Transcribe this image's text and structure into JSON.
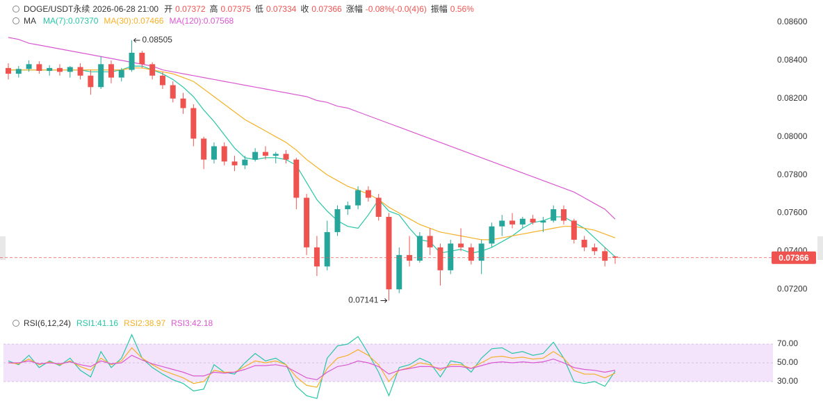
{
  "header": {
    "symbol": "DOGE/USDT永续",
    "time": "2026-06-28 21:00",
    "fields": [
      {
        "label": "开",
        "value": "0.07372"
      },
      {
        "label": "高",
        "value": "0.07375"
      },
      {
        "label": "低",
        "value": "0.07334"
      },
      {
        "label": "收",
        "value": "0.07366"
      },
      {
        "label": "涨幅",
        "value": "-0.08%(-0.0(4)6)"
      },
      {
        "label": "振幅",
        "value": "0.56%"
      }
    ]
  },
  "chart_data": [
    {
      "type": "candlestick",
      "legend_title": "MA",
      "up_color": "#26a69a",
      "down_color": "#ef5350",
      "open": [
        0.0836,
        0.0833,
        0.08355,
        0.0838,
        0.08345,
        0.0836,
        0.0834,
        0.08365,
        0.0832,
        0.0826,
        0.0838,
        0.0831,
        0.0835,
        0.0844,
        0.0838,
        0.0832,
        0.0827,
        0.082,
        0.0815,
        0.0799,
        0.0788,
        0.0795,
        0.0787,
        0.0785,
        0.0788,
        0.0792,
        0.079,
        0.0791,
        0.0788,
        0.0768,
        0.0742,
        0.0732,
        0.075,
        0.0762,
        0.0764,
        0.0772,
        0.0768,
        0.0758,
        0.072,
        0.0738,
        0.0735,
        0.0748,
        0.0742,
        0.073,
        0.0744,
        0.0742,
        0.0735,
        0.0744,
        0.0753,
        0.0756,
        0.0754,
        0.0757,
        0.0755,
        0.0756,
        0.0762,
        0.0756,
        0.0746,
        0.0742,
        0.074,
        0.07372
      ],
      "high": [
        0.08385,
        0.0837,
        0.084,
        0.08395,
        0.08375,
        0.0838,
        0.0837,
        0.08385,
        0.0835,
        0.0842,
        0.084,
        0.0836,
        0.08505,
        0.0845,
        0.0839,
        0.0834,
        0.0829,
        0.0823,
        0.0817,
        0.08,
        0.0797,
        0.0797,
        0.079,
        0.079,
        0.0794,
        0.0795,
        0.0792,
        0.0793,
        0.0789,
        0.077,
        0.0748,
        0.0756,
        0.0764,
        0.0766,
        0.0774,
        0.0774,
        0.077,
        0.076,
        0.0742,
        0.0748,
        0.075,
        0.0752,
        0.0744,
        0.0746,
        0.0752,
        0.0744,
        0.0746,
        0.0755,
        0.0759,
        0.076,
        0.0758,
        0.0759,
        0.0758,
        0.0764,
        0.0764,
        0.0757,
        0.0748,
        0.0744,
        0.0742,
        0.07375
      ],
      "low": [
        0.083,
        0.0831,
        0.0834,
        0.0833,
        0.0832,
        0.0832,
        0.0831,
        0.083,
        0.0822,
        0.0825,
        0.0828,
        0.0829,
        0.0834,
        0.0836,
        0.083,
        0.0825,
        0.0818,
        0.0812,
        0.0795,
        0.0783,
        0.0786,
        0.0785,
        0.0782,
        0.0783,
        0.0787,
        0.0788,
        0.0786,
        0.0786,
        0.0762,
        0.0738,
        0.0727,
        0.073,
        0.0748,
        0.0759,
        0.0762,
        0.0766,
        0.0756,
        0.07141,
        0.0718,
        0.0732,
        0.0734,
        0.0738,
        0.0722,
        0.0728,
        0.074,
        0.0733,
        0.0728,
        0.0742,
        0.0748,
        0.0752,
        0.0752,
        0.0754,
        0.075,
        0.0755,
        0.0754,
        0.0744,
        0.074,
        0.0738,
        0.0732,
        0.07334
      ],
      "close": [
        0.0833,
        0.08355,
        0.0838,
        0.08345,
        0.0836,
        0.0834,
        0.08365,
        0.0832,
        0.0826,
        0.0838,
        0.0831,
        0.0835,
        0.0844,
        0.0838,
        0.0832,
        0.0827,
        0.082,
        0.0815,
        0.0799,
        0.0788,
        0.0795,
        0.0787,
        0.0785,
        0.0788,
        0.0792,
        0.079,
        0.0791,
        0.0788,
        0.0768,
        0.0742,
        0.0732,
        0.075,
        0.0762,
        0.0764,
        0.0772,
        0.0768,
        0.0758,
        0.072,
        0.0738,
        0.0735,
        0.0748,
        0.0742,
        0.073,
        0.0744,
        0.0742,
        0.0735,
        0.0744,
        0.0753,
        0.0756,
        0.0754,
        0.0757,
        0.0755,
        0.0756,
        0.0762,
        0.0756,
        0.0746,
        0.0742,
        0.074,
        0.0735,
        0.07366
      ],
      "series": [
        {
          "name": "MA(7):0.07370",
          "color": "#26c6a6",
          "values": [
            0.0835,
            0.0835,
            0.0835,
            0.0835,
            0.0835,
            0.0835,
            0.0835,
            0.0835,
            0.0834,
            0.0834,
            0.0834,
            0.0835,
            0.0837,
            0.0837,
            0.0835,
            0.0833,
            0.083,
            0.0826,
            0.0821,
            0.0814,
            0.0808,
            0.0801,
            0.0794,
            0.0789,
            0.0788,
            0.0789,
            0.0789,
            0.0788,
            0.0785,
            0.0776,
            0.0767,
            0.0761,
            0.0756,
            0.0753,
            0.0752,
            0.0759,
            0.0767,
            0.0761,
            0.0759,
            0.0752,
            0.0746,
            0.0745,
            0.0739,
            0.074,
            0.0741,
            0.0739,
            0.074,
            0.0742,
            0.0745,
            0.0748,
            0.0752,
            0.0755,
            0.0756,
            0.0758,
            0.0758,
            0.0755,
            0.0752,
            0.0747,
            0.0742,
            0.0737
          ]
        },
        {
          "name": "MA(30):0.07466",
          "color": "#f5b026",
          "values": [
            0.0835,
            0.0835,
            0.0835,
            0.0835,
            0.0835,
            0.0835,
            0.0835,
            0.0835,
            0.0835,
            0.0835,
            0.0835,
            0.0835,
            0.0836,
            0.0836,
            0.0835,
            0.0834,
            0.0833,
            0.0831,
            0.0829,
            0.0825,
            0.0821,
            0.0817,
            0.0813,
            0.0809,
            0.0806,
            0.0803,
            0.08,
            0.0797,
            0.0793,
            0.0788,
            0.0784,
            0.078,
            0.0777,
            0.0774,
            0.0772,
            0.077,
            0.0767,
            0.0763,
            0.076,
            0.0757,
            0.0754,
            0.0752,
            0.075,
            0.0749,
            0.0748,
            0.0747,
            0.0746,
            0.0746,
            0.0747,
            0.0748,
            0.0749,
            0.075,
            0.0751,
            0.0752,
            0.0753,
            0.0753,
            0.0752,
            0.0751,
            0.0749,
            0.0747
          ]
        },
        {
          "name": "MA(120):0.07568",
          "color": "#d957d0",
          "values": [
            0.0852,
            0.0851,
            0.0849,
            0.0848,
            0.0847,
            0.0846,
            0.0845,
            0.0844,
            0.0843,
            0.0842,
            0.0841,
            0.084,
            0.0839,
            0.0838,
            0.0837,
            0.0835,
            0.0834,
            0.0833,
            0.0832,
            0.0831,
            0.083,
            0.0829,
            0.0828,
            0.0827,
            0.0826,
            0.0825,
            0.0824,
            0.0823,
            0.0822,
            0.0821,
            0.0819,
            0.0818,
            0.0816,
            0.0815,
            0.0813,
            0.0811,
            0.0809,
            0.0807,
            0.0805,
            0.0803,
            0.0801,
            0.0799,
            0.0797,
            0.0795,
            0.0793,
            0.0791,
            0.0789,
            0.0787,
            0.0785,
            0.0783,
            0.0781,
            0.0779,
            0.0777,
            0.0775,
            0.0773,
            0.0771,
            0.0768,
            0.0765,
            0.0762,
            0.07568
          ]
        }
      ],
      "annotations": {
        "high_label": "0.08505",
        "low_label": "0.07141"
      },
      "last_price": 0.07366,
      "last_price_color": "#ef5350",
      "ylim": [
        0.0711,
        0.0868
      ],
      "yticks": [
        {
          "value": 0.072,
          "label": "0.07200"
        },
        {
          "value": 0.074,
          "label": "0.07400"
        },
        {
          "value": 0.076,
          "label": "0.07600"
        },
        {
          "value": 0.078,
          "label": "0.07800"
        },
        {
          "value": 0.08,
          "label": "0.08000"
        },
        {
          "value": 0.082,
          "label": "0.08200"
        },
        {
          "value": 0.084,
          "label": "0.08400"
        },
        {
          "value": 0.086,
          "label": "0.08600"
        }
      ]
    },
    {
      "type": "line",
      "title": "RSI(6,12,24)",
      "band": [
        30,
        70
      ],
      "band_color": "#f3e4fb",
      "series": [
        {
          "name": "RSI1:41.16",
          "color": "#26c6a6",
          "values": [
            52,
            48,
            58,
            45,
            52,
            47,
            55,
            42,
            35,
            62,
            45,
            55,
            80,
            55,
            45,
            38,
            32,
            28,
            20,
            22,
            48,
            40,
            38,
            50,
            60,
            52,
            55,
            48,
            25,
            15,
            12,
            55,
            68,
            70,
            78,
            60,
            40,
            15,
            45,
            48,
            55,
            50,
            35,
            52,
            50,
            40,
            55,
            65,
            66,
            60,
            62,
            58,
            60,
            72,
            55,
            30,
            28,
            30,
            25,
            41.16
          ]
        },
        {
          "name": "RSI2:38.97",
          "color": "#f5b026",
          "values": [
            50,
            49,
            54,
            48,
            51,
            48,
            52,
            46,
            42,
            55,
            48,
            52,
            66,
            55,
            48,
            42,
            38,
            34,
            28,
            30,
            42,
            40,
            40,
            46,
            52,
            50,
            52,
            48,
            35,
            26,
            24,
            44,
            55,
            58,
            64,
            58,
            48,
            30,
            42,
            45,
            50,
            48,
            42,
            48,
            48,
            44,
            50,
            56,
            57,
            55,
            56,
            54,
            55,
            62,
            55,
            42,
            38,
            38,
            34,
            38.97
          ]
        },
        {
          "name": "RSI3:42.18",
          "color": "#d957d0",
          "values": [
            50,
            50,
            52,
            49,
            50,
            49,
            51,
            48,
            46,
            52,
            49,
            50,
            58,
            53,
            49,
            46,
            43,
            40,
            36,
            36,
            40,
            39,
            40,
            43,
            47,
            47,
            48,
            46,
            40,
            34,
            32,
            40,
            46,
            48,
            52,
            50,
            46,
            38,
            42,
            44,
            46,
            46,
            44,
            46,
            46,
            44,
            47,
            50,
            51,
            50,
            51,
            50,
            51,
            54,
            50,
            45,
            43,
            42,
            40,
            42.18
          ]
        }
      ],
      "ylim": [
        10,
        90
      ],
      "yticks": [
        {
          "value": 30,
          "label": "30.00"
        },
        {
          "value": 50,
          "label": "50.00"
        },
        {
          "value": 70,
          "label": "70.00"
        }
      ]
    }
  ]
}
